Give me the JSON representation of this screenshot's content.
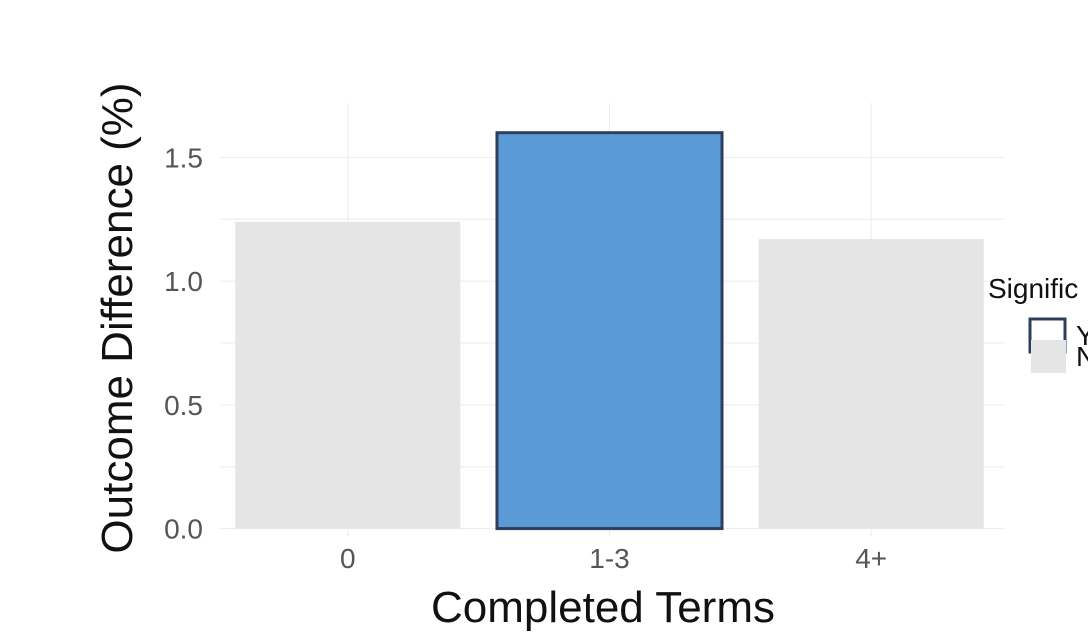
{
  "chart_data": {
    "type": "bar",
    "xlabel": "Completed Terms",
    "ylabel": "Outcome Difference (%)",
    "categories": [
      "0",
      "1-3",
      "4+"
    ],
    "values": [
      1.24,
      1.6,
      1.17
    ],
    "significant": [
      false,
      true,
      false
    ],
    "ylim": [
      -0.03,
      1.72
    ],
    "yticks": [
      "0.0",
      "0.5",
      "1.0",
      "1.5"
    ],
    "grid": true,
    "legend": {
      "title": "Signific",
      "entries": [
        "Y",
        "N"
      ],
      "placement": "right"
    },
    "colors": {
      "significant_fill": "#5b9bd5",
      "significant_stroke": "#2e3f5e",
      "nonsignificant_fill": "#e6e5e5",
      "grid": "#ececec"
    }
  }
}
